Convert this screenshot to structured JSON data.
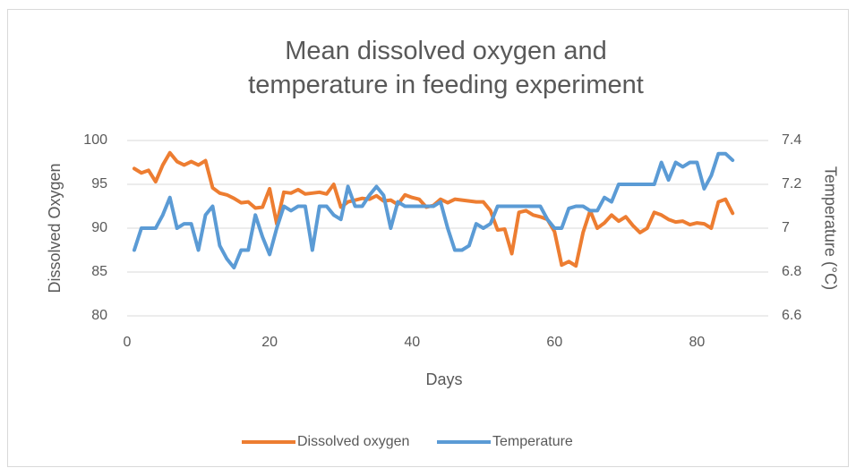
{
  "chart_data": {
    "type": "line",
    "title": "Mean dissolved oxygen and temperature in feeding experiment",
    "x_label": "Days",
    "y_label": "Dissolved Oxygen",
    "y2_label": "Temperature (°C)",
    "x": [
      1,
      2,
      3,
      4,
      5,
      6,
      7,
      8,
      9,
      10,
      11,
      12,
      13,
      14,
      15,
      16,
      17,
      18,
      19,
      20,
      21,
      22,
      23,
      24,
      25,
      26,
      27,
      28,
      29,
      30,
      31,
      32,
      33,
      34,
      35,
      36,
      37,
      38,
      39,
      40,
      41,
      42,
      43,
      44,
      45,
      46,
      47,
      48,
      49,
      50,
      51,
      52,
      53,
      54,
      55,
      56,
      57,
      58,
      59,
      60,
      61,
      62,
      63,
      64,
      65,
      66,
      67,
      68,
      69,
      70,
      71,
      72,
      73,
      74,
      75,
      76,
      77,
      78,
      79,
      80,
      81,
      82,
      83,
      84,
      85
    ],
    "series": [
      {
        "name": "Dissolved oxygen",
        "color": "#ed7d31",
        "axis": "y",
        "values": [
          96.8,
          96.3,
          96.6,
          95.3,
          97.2,
          98.6,
          97.6,
          97.2,
          97.6,
          97.2,
          97.7,
          94.6,
          94.0,
          93.8,
          93.4,
          92.9,
          93.0,
          92.3,
          92.4,
          94.5,
          90.5,
          94.1,
          94.0,
          94.4,
          93.9,
          94.0,
          94.1,
          93.9,
          95.0,
          92.4,
          93.0,
          93.2,
          93.4,
          93.3,
          93.7,
          93.1,
          93.2,
          92.7,
          93.8,
          93.5,
          93.3,
          92.4,
          92.6,
          93.3,
          92.9,
          93.3,
          93.2,
          93.1,
          93.0,
          93.0,
          92.0,
          89.8,
          89.9,
          87.1,
          91.8,
          92.0,
          91.5,
          91.3,
          91.0,
          89.6,
          85.8,
          86.2,
          85.7,
          89.5,
          92.0,
          90.0,
          90.6,
          91.5,
          90.8,
          91.3,
          90.3,
          89.5,
          90.0,
          91.8,
          91.5,
          91.0,
          90.7,
          90.8,
          90.4,
          90.6,
          90.5,
          90.0,
          93.0,
          93.3,
          91.7
        ]
      },
      {
        "name": "Temperature",
        "color": "#5b9bd5",
        "axis": "y2",
        "values": [
          6.9,
          7.0,
          7.0,
          7.0,
          7.06,
          7.14,
          7.0,
          7.02,
          7.02,
          6.9,
          7.06,
          7.1,
          6.92,
          6.86,
          6.82,
          6.9,
          6.9,
          7.06,
          6.96,
          6.88,
          7.0,
          7.1,
          7.08,
          7.1,
          7.1,
          6.9,
          7.1,
          7.1,
          7.06,
          7.04,
          7.19,
          7.1,
          7.1,
          7.15,
          7.19,
          7.15,
          7.0,
          7.12,
          7.1,
          7.1,
          7.1,
          7.1,
          7.1,
          7.12,
          7.0,
          6.9,
          6.9,
          6.92,
          7.02,
          7.0,
          7.02,
          7.1,
          7.1,
          7.1,
          7.1,
          7.1,
          7.1,
          7.1,
          7.04,
          7.0,
          7.0,
          7.09,
          7.1,
          7.1,
          7.08,
          7.08,
          7.14,
          7.12,
          7.2,
          7.2,
          7.2,
          7.2,
          7.2,
          7.2,
          7.3,
          7.22,
          7.3,
          7.28,
          7.3,
          7.3,
          7.18,
          7.24,
          7.34,
          7.34,
          7.31
        ]
      }
    ],
    "xlim": [
      0,
      90
    ],
    "xticks": [
      0,
      20,
      40,
      60,
      80
    ],
    "ylim": [
      80,
      100
    ],
    "yticks": [
      80,
      85,
      90,
      95,
      100
    ],
    "y2lim": [
      6.6,
      7.4
    ],
    "y2ticks": [
      6.6,
      6.8,
      7,
      7.2,
      7.4
    ],
    "grid": true,
    "legend": "bottom"
  }
}
